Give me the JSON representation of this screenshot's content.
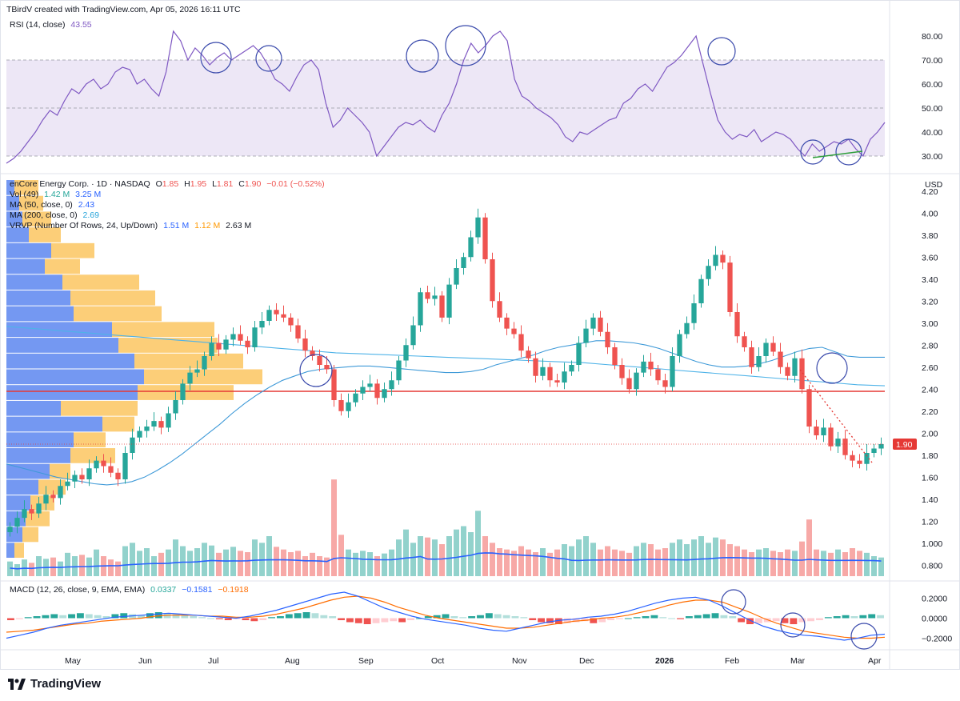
{
  "header": {
    "attribution": "TBirdV created with TradingView.com, Apr 05, 2026 16:11 UTC"
  },
  "rsi_legend": {
    "label": "RSI (14, close)",
    "value": "43.55"
  },
  "price_legend": {
    "symbol": "enCore Energy Corp. · 1D · NASDAQ",
    "o_label": "O",
    "o": "1.85",
    "h_label": "H",
    "h": "1.95",
    "l_label": "L",
    "l": "1.81",
    "c_label": "C",
    "c": "1.90",
    "change": "−0.01 (−0.52%)"
  },
  "vol_legend": {
    "label": "Vol (49)",
    "v1": "1.42 M",
    "v2": "3.25 M"
  },
  "ma50_legend": {
    "label": "MA (50, close, 0)",
    "value": "2.43"
  },
  "ma200_legend": {
    "label": "MA (200, close, 0)",
    "value": "2.69"
  },
  "vrvp_legend": {
    "label": "VRVP (Number Of Rows, 24, Up/Down)",
    "up": "1.51 M",
    "down": "1.12 M",
    "total": "2.63 M"
  },
  "macd_legend": {
    "label": "MACD (12, 26, close, 9, EMA, EMA)",
    "hist": "0.0337",
    "macd": "−0.1581",
    "signal": "−0.1918"
  },
  "logo": {
    "text": "TradingView"
  },
  "colors": {
    "up": "#26a69a",
    "down": "#ef5350",
    "rsi": "#7e57c2",
    "rsi_band": "#ede7f6",
    "ma50": "#2962ff",
    "ma200": "#42a5f5",
    "support": "#e53935",
    "vrvp_up": "#5c86f0",
    "vrvp_down": "#fbc660",
    "circle": "#3949ab",
    "macd_line": "#2962ff",
    "signal_line": "#ff6d00"
  },
  "chart_data": [
    {
      "type": "line",
      "name": "RSI",
      "ylim": [
        25,
        85
      ],
      "y_ticks": [
        "80.00",
        "70.00",
        "60.00",
        "50.00",
        "40.00",
        "30.00"
      ],
      "bands": [
        70,
        50,
        30
      ],
      "values": [
        27,
        29,
        32,
        36,
        40,
        45,
        49,
        47,
        53,
        58,
        56,
        60,
        62,
        58,
        60,
        65,
        67,
        66,
        60,
        62,
        58,
        55,
        65,
        82,
        78,
        70,
        75,
        72,
        68,
        71,
        73,
        70,
        72,
        74,
        76,
        73,
        68,
        62,
        60,
        57,
        63,
        68,
        70,
        66,
        52,
        42,
        45,
        50,
        47,
        44,
        40,
        30,
        34,
        38,
        42,
        44,
        43,
        45,
        42,
        40,
        47,
        52,
        60,
        70,
        77,
        73,
        76,
        80,
        82,
        78,
        62,
        55,
        53,
        50,
        48,
        46,
        43,
        38,
        36,
        40,
        39,
        41,
        43,
        45,
        46,
        52,
        54,
        58,
        60,
        57,
        62,
        67,
        69,
        72,
        76,
        80,
        68,
        56,
        45,
        40,
        37,
        39,
        38,
        41,
        36,
        38,
        40,
        39,
        37,
        33,
        30,
        35,
        32,
        34,
        36,
        35,
        37,
        33,
        30,
        37,
        40,
        44
      ],
      "current": "43.55"
    },
    {
      "type": "candlestick",
      "name": "enCore Energy Corp.",
      "ylim": [
        0.7,
        4.3
      ],
      "y_ticks": [
        "4.20",
        "4.00",
        "3.80",
        "3.60",
        "3.40",
        "3.20",
        "3.00",
        "2.80",
        "2.60",
        "2.40",
        "2.20",
        "2.00",
        "1.80",
        "1.60",
        "1.40",
        "1.20",
        "1.000",
        "0.800"
      ],
      "unit": "USD",
      "x_ticks": [
        "May",
        "Jun",
        "Jul",
        "Aug",
        "Sep",
        "Oct",
        "Nov",
        "Dec",
        "2026",
        "Feb",
        "Mar",
        "Apr"
      ],
      "close": [
        1.15,
        1.23,
        1.31,
        1.27,
        1.36,
        1.44,
        1.41,
        1.52,
        1.56,
        1.62,
        1.58,
        1.68,
        1.75,
        1.7,
        1.64,
        1.58,
        1.82,
        1.96,
        2.02,
        2.06,
        2.11,
        2.05,
        2.18,
        2.3,
        2.45,
        2.55,
        2.58,
        2.7,
        2.82,
        2.76,
        2.85,
        2.9,
        2.84,
        2.78,
        2.96,
        3.02,
        3.12,
        3.08,
        3.05,
        2.98,
        2.86,
        2.75,
        2.7,
        2.62,
        2.58,
        2.3,
        2.2,
        2.28,
        2.36,
        2.42,
        2.45,
        2.32,
        2.4,
        2.48,
        2.66,
        2.8,
        2.98,
        3.28,
        3.22,
        3.25,
        3.05,
        3.35,
        3.5,
        3.6,
        3.78,
        3.96,
        3.58,
        3.2,
        3.05,
        2.95,
        2.9,
        2.75,
        2.68,
        2.52,
        2.6,
        2.48,
        2.46,
        2.56,
        2.62,
        2.82,
        2.95,
        3.05,
        2.92,
        2.78,
        2.62,
        2.5,
        2.4,
        2.55,
        2.65,
        2.58,
        2.48,
        2.42,
        2.7,
        2.9,
        3.0,
        3.18,
        3.4,
        3.52,
        3.62,
        3.55,
        3.1,
        2.88,
        2.78,
        2.6,
        2.7,
        2.82,
        2.74,
        2.6,
        2.52,
        2.68,
        2.4,
        2.06,
        1.98,
        2.05,
        1.88,
        1.95,
        1.8,
        1.75,
        1.72,
        1.82,
        1.86,
        1.9
      ],
      "ma50": [
        1.72,
        1.69,
        1.66,
        1.63,
        1.6,
        1.58,
        1.56,
        1.54,
        1.53,
        1.54,
        1.56,
        1.6,
        1.66,
        1.73,
        1.81,
        1.9,
        1.99,
        2.08,
        2.18,
        2.27,
        2.35,
        2.42,
        2.48,
        2.52,
        2.56,
        2.58,
        2.59,
        2.6,
        2.61,
        2.61,
        2.6,
        2.59,
        2.58,
        2.57,
        2.56,
        2.55,
        2.55,
        2.56,
        2.58,
        2.62,
        2.65,
        2.68,
        2.71,
        2.75,
        2.78,
        2.8,
        2.82,
        2.84,
        2.84,
        2.83,
        2.82,
        2.8,
        2.77,
        2.73,
        2.69,
        2.65,
        2.62,
        2.6,
        2.6,
        2.61,
        2.63,
        2.66,
        2.7,
        2.74,
        2.77,
        2.78,
        2.74,
        2.7,
        2.69,
        2.69,
        2.69
      ],
      "ma200": [
        2.97,
        2.95,
        2.93,
        2.91,
        2.89,
        2.87,
        2.85,
        2.83,
        2.81,
        2.79,
        2.77,
        2.75,
        2.73,
        2.72,
        2.71,
        2.7,
        2.69,
        2.68,
        2.67,
        2.66,
        2.65,
        2.64,
        2.62,
        2.6,
        2.58,
        2.56,
        2.54,
        2.52,
        2.5,
        2.48,
        2.46,
        2.44,
        2.43
      ],
      "support_level": 2.38,
      "last_price": "1.90",
      "volume": [
        0.22,
        0.18,
        0.25,
        0.2,
        0.3,
        0.26,
        0.28,
        0.22,
        0.35,
        0.3,
        0.32,
        0.28,
        0.4,
        0.3,
        0.25,
        0.22,
        0.45,
        0.5,
        0.38,
        0.42,
        0.3,
        0.35,
        0.4,
        0.55,
        0.45,
        0.38,
        0.42,
        0.5,
        0.46,
        0.35,
        0.4,
        0.44,
        0.38,
        0.36,
        0.55,
        0.5,
        0.6,
        0.44,
        0.4,
        0.36,
        0.38,
        0.3,
        0.35,
        0.3,
        0.28,
        1.45,
        0.62,
        0.4,
        0.35,
        0.38,
        0.36,
        0.3,
        0.34,
        0.4,
        0.55,
        0.7,
        0.5,
        0.6,
        0.58,
        0.55,
        0.48,
        0.6,
        0.7,
        0.75,
        0.66,
        0.98,
        0.6,
        0.5,
        0.42,
        0.4,
        0.38,
        0.45,
        0.4,
        0.36,
        0.42,
        0.35,
        0.4,
        0.48,
        0.45,
        0.55,
        0.6,
        0.5,
        0.4,
        0.45,
        0.4,
        0.38,
        0.35,
        0.45,
        0.5,
        0.48,
        0.4,
        0.42,
        0.5,
        0.55,
        0.48,
        0.55,
        0.6,
        0.5,
        0.58,
        0.55,
        0.48,
        0.45,
        0.4,
        0.36,
        0.4,
        0.42,
        0.38,
        0.36,
        0.4,
        0.38,
        0.52,
        0.85,
        0.4,
        0.38,
        0.35,
        0.4,
        0.36,
        0.42,
        0.38,
        0.35,
        0.3,
        0.28
      ],
      "vrvp_rows": [
        {
          "up": 0.05,
          "down": 0.15
        },
        {
          "up": 0.08,
          "down": 0.15
        },
        {
          "up": 0.1,
          "down": 0.18
        },
        {
          "up": 0.14,
          "down": 0.2
        },
        {
          "up": 0.28,
          "down": 0.27
        },
        {
          "up": 0.24,
          "down": 0.22
        },
        {
          "up": 0.35,
          "down": 0.48
        },
        {
          "up": 0.4,
          "down": 0.53
        },
        {
          "up": 0.42,
          "down": 0.55
        },
        {
          "up": 0.66,
          "down": 0.64
        },
        {
          "up": 0.7,
          "down": 0.62
        },
        {
          "up": 0.8,
          "down": 0.68
        },
        {
          "up": 0.86,
          "down": 0.74
        },
        {
          "up": 0.82,
          "down": 0.6
        },
        {
          "up": 0.34,
          "down": 0.48
        },
        {
          "up": 0.6,
          "down": 0.2
        },
        {
          "up": 0.42,
          "down": 0.2
        },
        {
          "up": 0.4,
          "down": 0.28
        },
        {
          "up": 0.27,
          "down": 0.13
        },
        {
          "up": 0.2,
          "down": 0.17
        },
        {
          "up": 0.15,
          "down": 0.15
        },
        {
          "up": 0.12,
          "down": 0.15
        },
        {
          "up": 0.1,
          "down": 0.1
        },
        {
          "up": 0.05,
          "down": 0.06
        }
      ]
    },
    {
      "type": "bar",
      "name": "MACD",
      "ylim": [
        -0.3,
        0.3
      ],
      "y_ticks": [
        "0.2000",
        "0.0000",
        "−0.2000"
      ],
      "histogram": [
        -0.02,
        -0.01,
        0.01,
        0.02,
        0.03,
        0.04,
        0.03,
        0.04,
        0.05,
        0.04,
        0.03,
        0.02,
        0.04,
        0.05,
        0.04,
        0.03,
        0.05,
        0.06,
        0.05,
        0.04,
        0.03,
        0.02,
        0.01,
        0.0,
        -0.01,
        -0.02,
        -0.01,
        -0.02,
        -0.03,
        -0.02,
        0.01,
        0.02,
        0.04,
        0.05,
        0.06,
        0.05,
        0.03,
        0.02,
        -0.02,
        -0.04,
        -0.05,
        -0.06,
        -0.05,
        -0.04,
        -0.03,
        -0.04,
        -0.02,
        0.0,
        0.02,
        0.03,
        0.04,
        0.02,
        0.01,
        0.02,
        0.03,
        0.05,
        0.04,
        0.03,
        0.02,
        0.01,
        -0.02,
        -0.04,
        -0.05,
        -0.06,
        -0.05,
        -0.04,
        -0.03,
        -0.05,
        -0.04,
        -0.02,
        -0.01,
        0.0,
        0.01,
        0.02,
        0.03,
        0.01,
        0.0,
        -0.01,
        0.02,
        0.03,
        0.04,
        0.05,
        0.03,
        0.02,
        -0.04,
        -0.06,
        -0.05,
        -0.04,
        -0.03,
        -0.05,
        -0.06,
        -0.04,
        -0.03,
        -0.02,
        0.01,
        0.02,
        0.03,
        0.02,
        0.03,
        0.04,
        0.03
      ],
      "macd": [
        -0.2,
        -0.17,
        -0.14,
        -0.1,
        -0.07,
        -0.05,
        -0.03,
        -0.01,
        0.01,
        0.02,
        0.03,
        0.04,
        0.05,
        0.04,
        0.03,
        0.02,
        0.01,
        0.0,
        0.02,
        0.05,
        0.08,
        0.12,
        0.16,
        0.2,
        0.24,
        0.26,
        0.22,
        0.16,
        0.1,
        0.06,
        0.02,
        -0.01,
        -0.03,
        -0.05,
        -0.07,
        -0.1,
        -0.12,
        -0.13,
        -0.1,
        -0.07,
        -0.04,
        -0.02,
        -0.01,
        0.01,
        0.02,
        0.04,
        0.07,
        0.11,
        0.15,
        0.18,
        0.2,
        0.21,
        0.18,
        0.12,
        0.05,
        -0.02,
        -0.08,
        -0.12,
        -0.15,
        -0.17,
        -0.18,
        -0.2,
        -0.22,
        -0.2,
        -0.17,
        -0.16
      ],
      "signal": [
        -0.14,
        -0.13,
        -0.12,
        -0.1,
        -0.08,
        -0.06,
        -0.05,
        -0.03,
        -0.02,
        -0.01,
        0.0,
        0.02,
        0.03,
        0.03,
        0.03,
        0.02,
        0.02,
        0.01,
        0.01,
        0.02,
        0.04,
        0.07,
        0.1,
        0.14,
        0.18,
        0.21,
        0.22,
        0.2,
        0.16,
        0.11,
        0.07,
        0.03,
        0.0,
        -0.02,
        -0.04,
        -0.06,
        -0.08,
        -0.1,
        -0.1,
        -0.09,
        -0.07,
        -0.05,
        -0.03,
        -0.02,
        0.0,
        0.01,
        0.03,
        0.06,
        0.09,
        0.13,
        0.16,
        0.18,
        0.18,
        0.16,
        0.11,
        0.06,
        0.0,
        -0.05,
        -0.09,
        -0.13,
        -0.15,
        -0.17,
        -0.19,
        -0.2,
        -0.2,
        -0.19
      ]
    }
  ]
}
